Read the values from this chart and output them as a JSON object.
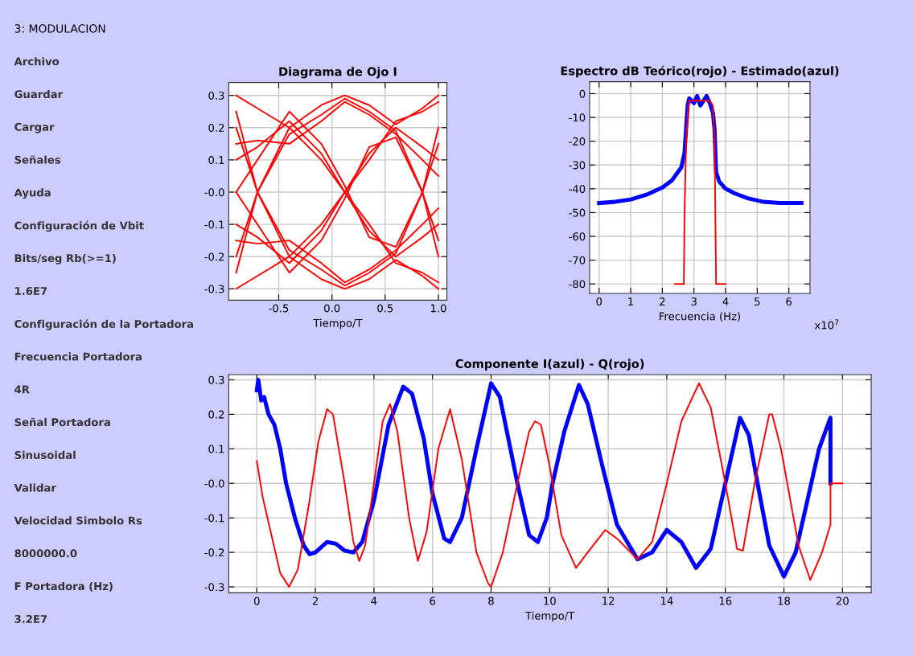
{
  "chart_data": [
    {
      "type": "other",
      "title": "3: MODULACION",
      "annotations": [
        "Archivo",
        "Guardar",
        "Cargar",
        "Señales",
        "Ayuda",
        "Configuración de Vbit",
        "Bits/seg Rb(>=1)",
        "1.6E7",
        "Configuración de la Portadora",
        "Frecuencia Portadora",
        "4R",
        "Señal Portadora",
        "Sinusoidal",
        "Validar",
        "Velocidad Simbolo Rs",
        "8000000.0",
        "F Portadora (Hz)",
        "3.2E7"
      ]
    },
    {
      "type": "line",
      "title": "Diagrama de Ojo I",
      "xlabel": "Tiempo/T",
      "grid": true,
      "xlim": [
        -0.97,
        1.08
      ],
      "ylim": [
        -0.335,
        0.34
      ],
      "xticks": [
        {
          "value": -0.5,
          "label": "-0.5"
        },
        {
          "value": 0,
          "label": "0.0"
        },
        0.5,
        {
          "value": 1,
          "label": "1.0"
        }
      ],
      "yticks": [
        0.3,
        0.2,
        0.1,
        {
          "value": 0,
          "label": "-0.0"
        },
        -0.1,
        -0.2,
        -0.3
      ],
      "x": [
        -0.9,
        -0.7,
        -0.4,
        -0.1,
        0.12,
        0.35,
        0.6,
        0.85,
        1.0
      ],
      "series": [
        {
          "color": "#ff0000",
          "values": [
            0.3,
            0.26,
            0.2,
            0.27,
            0.3,
            0.27,
            0.21,
            0.26,
            0.3
          ]
        },
        {
          "color": "#ff0000",
          "values": [
            -0.3,
            -0.26,
            -0.2,
            -0.27,
            -0.3,
            -0.27,
            -0.21,
            -0.26,
            -0.3
          ]
        },
        {
          "color": "#ff0000",
          "values": [
            0.1,
            0.14,
            0.22,
            0.12,
            0.0,
            -0.12,
            -0.2,
            -0.14,
            -0.1
          ]
        },
        {
          "color": "#ff0000",
          "values": [
            -0.1,
            -0.14,
            -0.22,
            -0.12,
            0.0,
            0.12,
            0.2,
            0.14,
            0.1
          ]
        },
        {
          "color": "#ff0000",
          "values": [
            -0.2,
            0.0,
            0.18,
            0.24,
            0.29,
            0.25,
            0.19,
            0.0,
            -0.2
          ]
        },
        {
          "color": "#ff0000",
          "values": [
            0.2,
            0.0,
            -0.18,
            -0.24,
            -0.29,
            -0.25,
            -0.19,
            0.0,
            0.2
          ]
        },
        {
          "color": "#ff0000",
          "values": [
            0.25,
            0.0,
            -0.2,
            -0.1,
            0.0,
            0.1,
            0.22,
            0.25,
            0.28
          ]
        },
        {
          "color": "#ff0000",
          "values": [
            -0.25,
            0.0,
            0.2,
            0.1,
            0.0,
            -0.1,
            -0.22,
            -0.25,
            -0.28
          ]
        },
        {
          "color": "#ff0000",
          "values": [
            0.0,
            0.1,
            0.25,
            0.15,
            0.02,
            -0.14,
            -0.17,
            0.0,
            0.15
          ]
        },
        {
          "color": "#ff0000",
          "values": [
            0.0,
            -0.1,
            -0.25,
            -0.15,
            -0.02,
            0.14,
            0.17,
            0.0,
            -0.15
          ]
        },
        {
          "color": "#ff0000",
          "values": [
            0.15,
            0.16,
            0.15,
            0.22,
            0.28,
            0.24,
            0.18,
            0.1,
            0.05
          ]
        },
        {
          "color": "#ff0000",
          "values": [
            -0.15,
            -0.16,
            -0.15,
            -0.22,
            -0.28,
            -0.24,
            -0.18,
            -0.1,
            -0.05
          ]
        }
      ]
    },
    {
      "type": "line",
      "title": "Espectro dB Teórico(rojo) - Estimado(azul)",
      "xlabel": "Frecuencia (Hz)",
      "grid": true,
      "annotations": [
        "x10$^{7}$"
      ],
      "xlim": [
        -0.3,
        6.67
      ],
      "ylim": [
        -84,
        5
      ],
      "xticks": [
        0,
        1,
        2,
        3,
        4,
        5,
        6
      ],
      "yticks": [
        0,
        -10,
        -20,
        -30,
        -40,
        -50,
        -60,
        -70,
        -80
      ],
      "series": [
        {
          "color": "#0000ff",
          "x": [
            0,
            0.5,
            1,
            1.5,
            2,
            2.3,
            2.6,
            2.7,
            2.75,
            2.8,
            2.85,
            3.0,
            3.1,
            3.2,
            3.3,
            3.4,
            3.5,
            3.6,
            3.65,
            3.7,
            3.8,
            4.0,
            4.3,
            4.7,
            5.2,
            5.7,
            6.4
          ],
          "values": [
            -46,
            -45.5,
            -44.5,
            -42.5,
            -39.5,
            -36.5,
            -31,
            -25,
            -15,
            -5,
            -2,
            -4,
            -1,
            -5,
            -3,
            -1,
            -4,
            -8,
            -15,
            -33,
            -37,
            -40,
            -42,
            -44,
            -45.5,
            -46,
            -46
          ]
        },
        {
          "color": "#ff0000",
          "x": [
            2.4,
            2.68,
            2.7,
            2.75,
            2.82,
            2.86,
            3.5,
            3.6,
            3.65,
            3.7,
            4.0
          ],
          "values": [
            -80,
            -80,
            -52,
            -20,
            -5,
            -3,
            -3,
            -5,
            -18,
            -80,
            -80
          ]
        }
      ]
    },
    {
      "type": "line",
      "title": "Componente I(azul) - Q(rojo)",
      "xlabel": "Tiempo/T",
      "grid": true,
      "xlim": [
        -0.96,
        20.98
      ],
      "ylim": [
        -0.317,
        0.315
      ],
      "xticks": [
        0,
        2,
        4,
        6,
        8,
        10,
        12,
        14,
        16,
        18,
        20
      ],
      "yticks": [
        0.3,
        0.2,
        0.1,
        {
          "value": 0,
          "label": "-0.0"
        },
        -0.1,
        -0.2,
        -0.3
      ],
      "series": [
        {
          "color": "#0000ff",
          "x": [
            0,
            0.05,
            0.15,
            0.25,
            0.4,
            0.6,
            0.8,
            1.0,
            1.3,
            1.6,
            1.8,
            2.0,
            2.4,
            2.7,
            3.0,
            3.3,
            3.6,
            4.0,
            4.5,
            5.0,
            5.3,
            5.7,
            6.0,
            6.4,
            6.6,
            7.0,
            7.5,
            8.0,
            8.3,
            8.9,
            9.3,
            9.6,
            9.9,
            10.1,
            10.5,
            11.0,
            11.3,
            11.8,
            12.3,
            13.0,
            13.5,
            14.0,
            14.5,
            15.0,
            15.5,
            16.0,
            16.5,
            16.8,
            17.1,
            17.5,
            18.0,
            18.4,
            18.8,
            19.2,
            19.5,
            19.59,
            19.59
          ],
          "values": [
            0.27,
            0.3,
            0.24,
            0.25,
            0.2,
            0.17,
            0.1,
            0.0,
            -0.1,
            -0.18,
            -0.205,
            -0.2,
            -0.17,
            -0.175,
            -0.195,
            -0.2,
            -0.17,
            -0.05,
            0.17,
            0.28,
            0.26,
            0.13,
            -0.03,
            -0.16,
            -0.17,
            -0.1,
            0.1,
            0.29,
            0.25,
            0.0,
            -0.15,
            -0.17,
            -0.1,
            0.0,
            0.15,
            0.285,
            0.23,
            0.05,
            -0.12,
            -0.22,
            -0.2,
            -0.135,
            -0.17,
            -0.245,
            -0.19,
            0.0,
            0.19,
            0.14,
            0.0,
            -0.18,
            -0.27,
            -0.2,
            -0.05,
            0.1,
            0.17,
            0.19,
            0.0
          ]
        },
        {
          "color": "#ff0000",
          "x": [
            0,
            0.2,
            0.5,
            0.8,
            1.1,
            1.4,
            1.8,
            2.1,
            2.4,
            2.6,
            3.0,
            3.3,
            3.5,
            3.7,
            4.0,
            4.3,
            4.55,
            4.8,
            5.2,
            5.5,
            5.8,
            6.2,
            6.6,
            7.0,
            7.5,
            7.9,
            8.0,
            8.4,
            8.9,
            9.3,
            9.5,
            9.7,
            10.0,
            10.4,
            10.9,
            11.3,
            11.9,
            12.3,
            13.0,
            13.5,
            14.0,
            14.5,
            15.1,
            15.5,
            16.0,
            16.4,
            16.6,
            17.0,
            17.5,
            17.6,
            17.9,
            18.5,
            18.9,
            19.3,
            19.59,
            19.59,
            20.0
          ],
          "values": [
            0.065,
            -0.04,
            -0.15,
            -0.26,
            -0.3,
            -0.25,
            -0.05,
            0.12,
            0.215,
            0.2,
            0.0,
            -0.17,
            -0.225,
            -0.18,
            0.0,
            0.18,
            0.23,
            0.15,
            -0.1,
            -0.225,
            -0.14,
            0.1,
            0.215,
            0.07,
            -0.2,
            -0.29,
            -0.3,
            -0.2,
            0.0,
            0.15,
            0.18,
            0.17,
            0.05,
            -0.15,
            -0.245,
            -0.2,
            -0.135,
            -0.16,
            -0.22,
            -0.17,
            0.0,
            0.18,
            0.29,
            0.22,
            0.0,
            -0.19,
            -0.195,
            0.0,
            0.2,
            0.2,
            0.1,
            -0.18,
            -0.28,
            -0.2,
            -0.12,
            0.0,
            0.0
          ]
        }
      ]
    }
  ]
}
